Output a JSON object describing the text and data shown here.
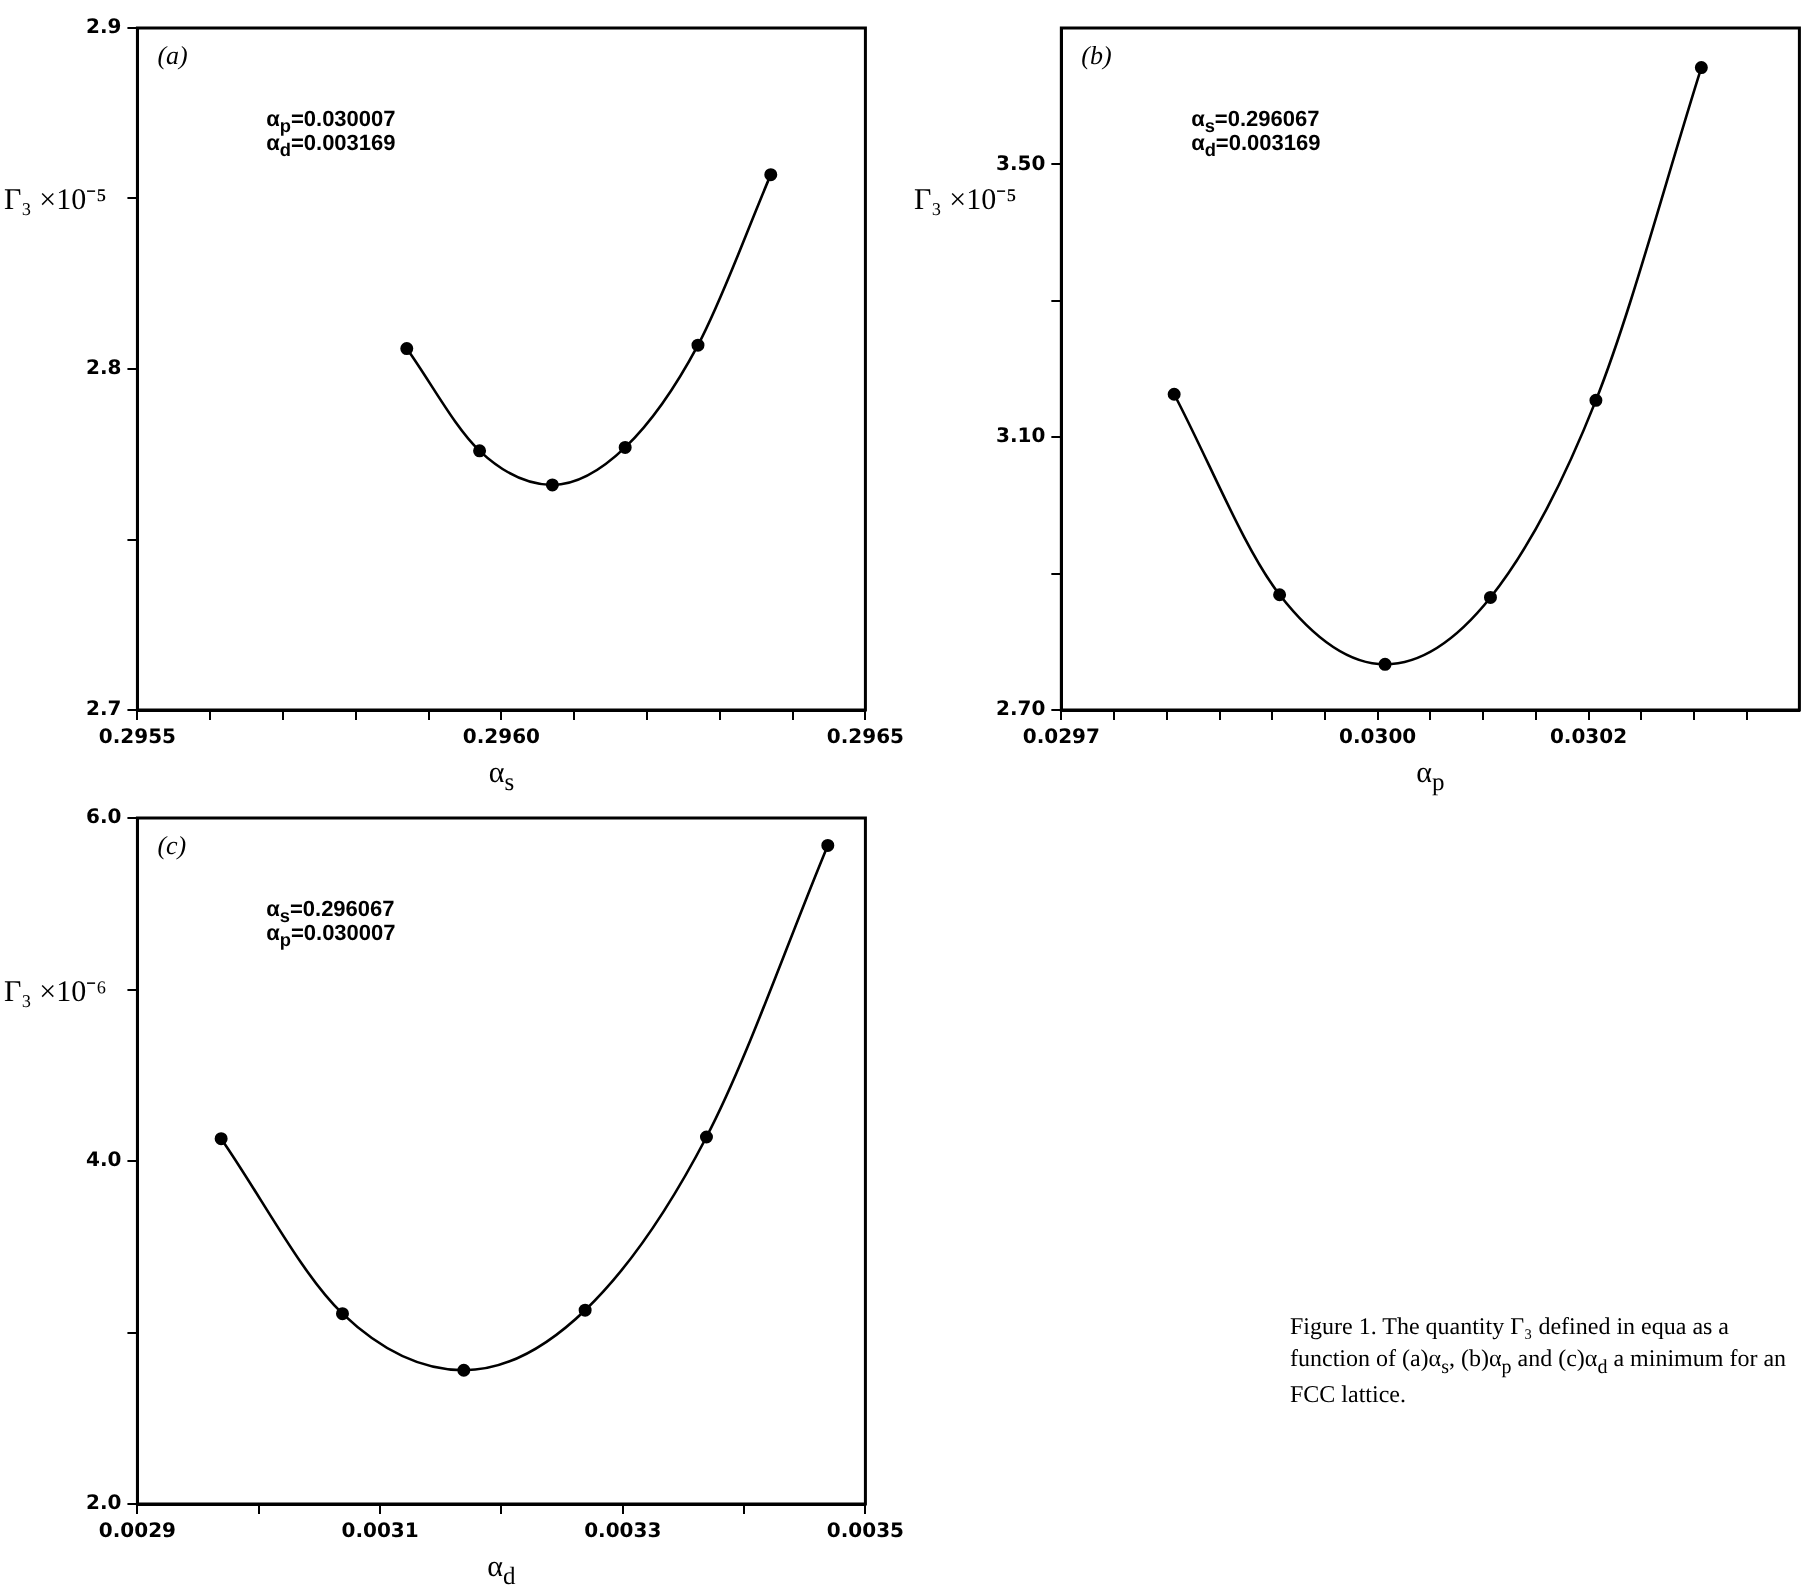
{
  "chart_data": [
    {
      "type": "line",
      "xlabel": "α$_{s}$",
      "ylabel": "Γ₃ ×10⁻⁵",
      "marker": "circle",
      "grid": false,
      "legend": false,
      "x": [
        0.29587,
        0.29597,
        0.29607,
        0.29617,
        0.29627,
        0.29637
      ],
      "series": [
        {
          "color": "#000000",
          "values": [
            2.806,
            2.776,
            2.766,
            2.777,
            2.807,
            2.857
          ]
        }
      ],
      "xlim": [
        0.2955,
        0.2965
      ],
      "xticks": [
        0.2955,
        {
          "value": 0.2956,
          "label": null
        },
        {
          "value": 0.2957,
          "label": null
        },
        {
          "value": 0.2958,
          "label": null
        },
        {
          "value": 0.2959,
          "label": null
        },
        {
          "value": 0.296,
          "label": "0.2960"
        },
        {
          "value": 0.2961,
          "label": null
        },
        {
          "value": 0.2962,
          "label": null
        },
        {
          "value": 0.2963,
          "label": null
        },
        {
          "value": 0.2964,
          "label": null
        },
        0.2965
      ],
      "ylim": [
        2.7,
        2.9
      ],
      "yticks": [
        2.7,
        {
          "value": 2.75,
          "label": null
        },
        2.8,
        {
          "value": 2.85,
          "label": null
        },
        2.9
      ],
      "annotations": [
        "(a)",
        "α$_{p}$=0.030007",
        "α$_{d}$=0.003169"
      ]
    },
    {
      "type": "line",
      "xlabel": "α$_{p}$",
      "ylabel": "Γ₃ ×10⁻⁵",
      "marker": "circle",
      "grid": false,
      "legend": false,
      "x": [
        0.029807,
        0.029907,
        0.030007,
        0.030107,
        0.030207,
        0.030307
      ],
      "series": [
        {
          "color": "#000000",
          "values": [
            3.163,
            2.869,
            2.767,
            2.865,
            3.154,
            3.642
          ]
        }
      ],
      "xlim": [
        0.0297,
        0.0304
      ],
      "xticks": [
        0.0297,
        {
          "value": 0.02975,
          "label": null
        },
        {
          "value": 0.0298,
          "label": null
        },
        {
          "value": 0.02985,
          "label": null
        },
        {
          "value": 0.0299,
          "label": null
        },
        {
          "value": 0.02995,
          "label": null
        },
        {
          "value": 0.03,
          "label": "0.0300"
        },
        {
          "value": 0.03005,
          "label": null
        },
        {
          "value": 0.0301,
          "label": null
        },
        {
          "value": 0.03015,
          "label": null
        },
        0.0302,
        {
          "value": 0.03025,
          "label": null
        },
        {
          "value": 0.0303,
          "label": null
        },
        {
          "value": 0.03035,
          "label": null
        }
      ],
      "ylim": [
        2.7,
        3.7
      ],
      "yticks": [
        {
          "value": 2.7,
          "label": "2.70"
        },
        {
          "value": 2.9,
          "label": null
        },
        {
          "value": 3.1,
          "label": "3.10"
        },
        {
          "value": 3.3,
          "label": null
        },
        {
          "value": 3.5,
          "label": "3.50"
        }
      ],
      "annotations": [
        "(b)",
        "α$_{s}$=0.296067",
        "α$_{d}$=0.003169"
      ]
    },
    {
      "type": "line",
      "xlabel": "α$_{d}$",
      "ylabel": "Γ₃ ×10⁻⁶",
      "marker": "circle",
      "grid": false,
      "legend": false,
      "x": [
        0.002969,
        0.003069,
        0.003169,
        0.003269,
        0.003369,
        0.003469
      ],
      "series": [
        {
          "color": "#000000",
          "values": [
            4.13,
            3.11,
            2.78,
            3.13,
            4.14,
            5.84
          ]
        }
      ],
      "xlim": [
        0.0029,
        0.0035
      ],
      "xticks": [
        0.0029,
        {
          "value": 0.003,
          "label": null
        },
        0.0031,
        {
          "value": 0.0032,
          "label": null
        },
        0.0033,
        {
          "value": 0.0034,
          "label": null
        },
        0.0035
      ],
      "ylim": [
        2.0,
        6.0
      ],
      "yticks": [
        {
          "value": 2,
          "label": "2.0"
        },
        {
          "value": 3,
          "label": null
        },
        {
          "value": 4,
          "label": "4.0"
        },
        {
          "value": 5,
          "label": null
        },
        {
          "value": 6,
          "label": "6.0"
        }
      ],
      "annotations": [
        "(c)",
        "α$_{s}$=0.296067",
        "α$_{p}$=0.030007",
        "Figure 1. The quantity Γ₃ defined in equa as a function of (a)α$_{s}$, (b)α$_{p}$ and (c)α$_{d}$ a minimum for an FCC lattice."
      ]
    }
  ]
}
